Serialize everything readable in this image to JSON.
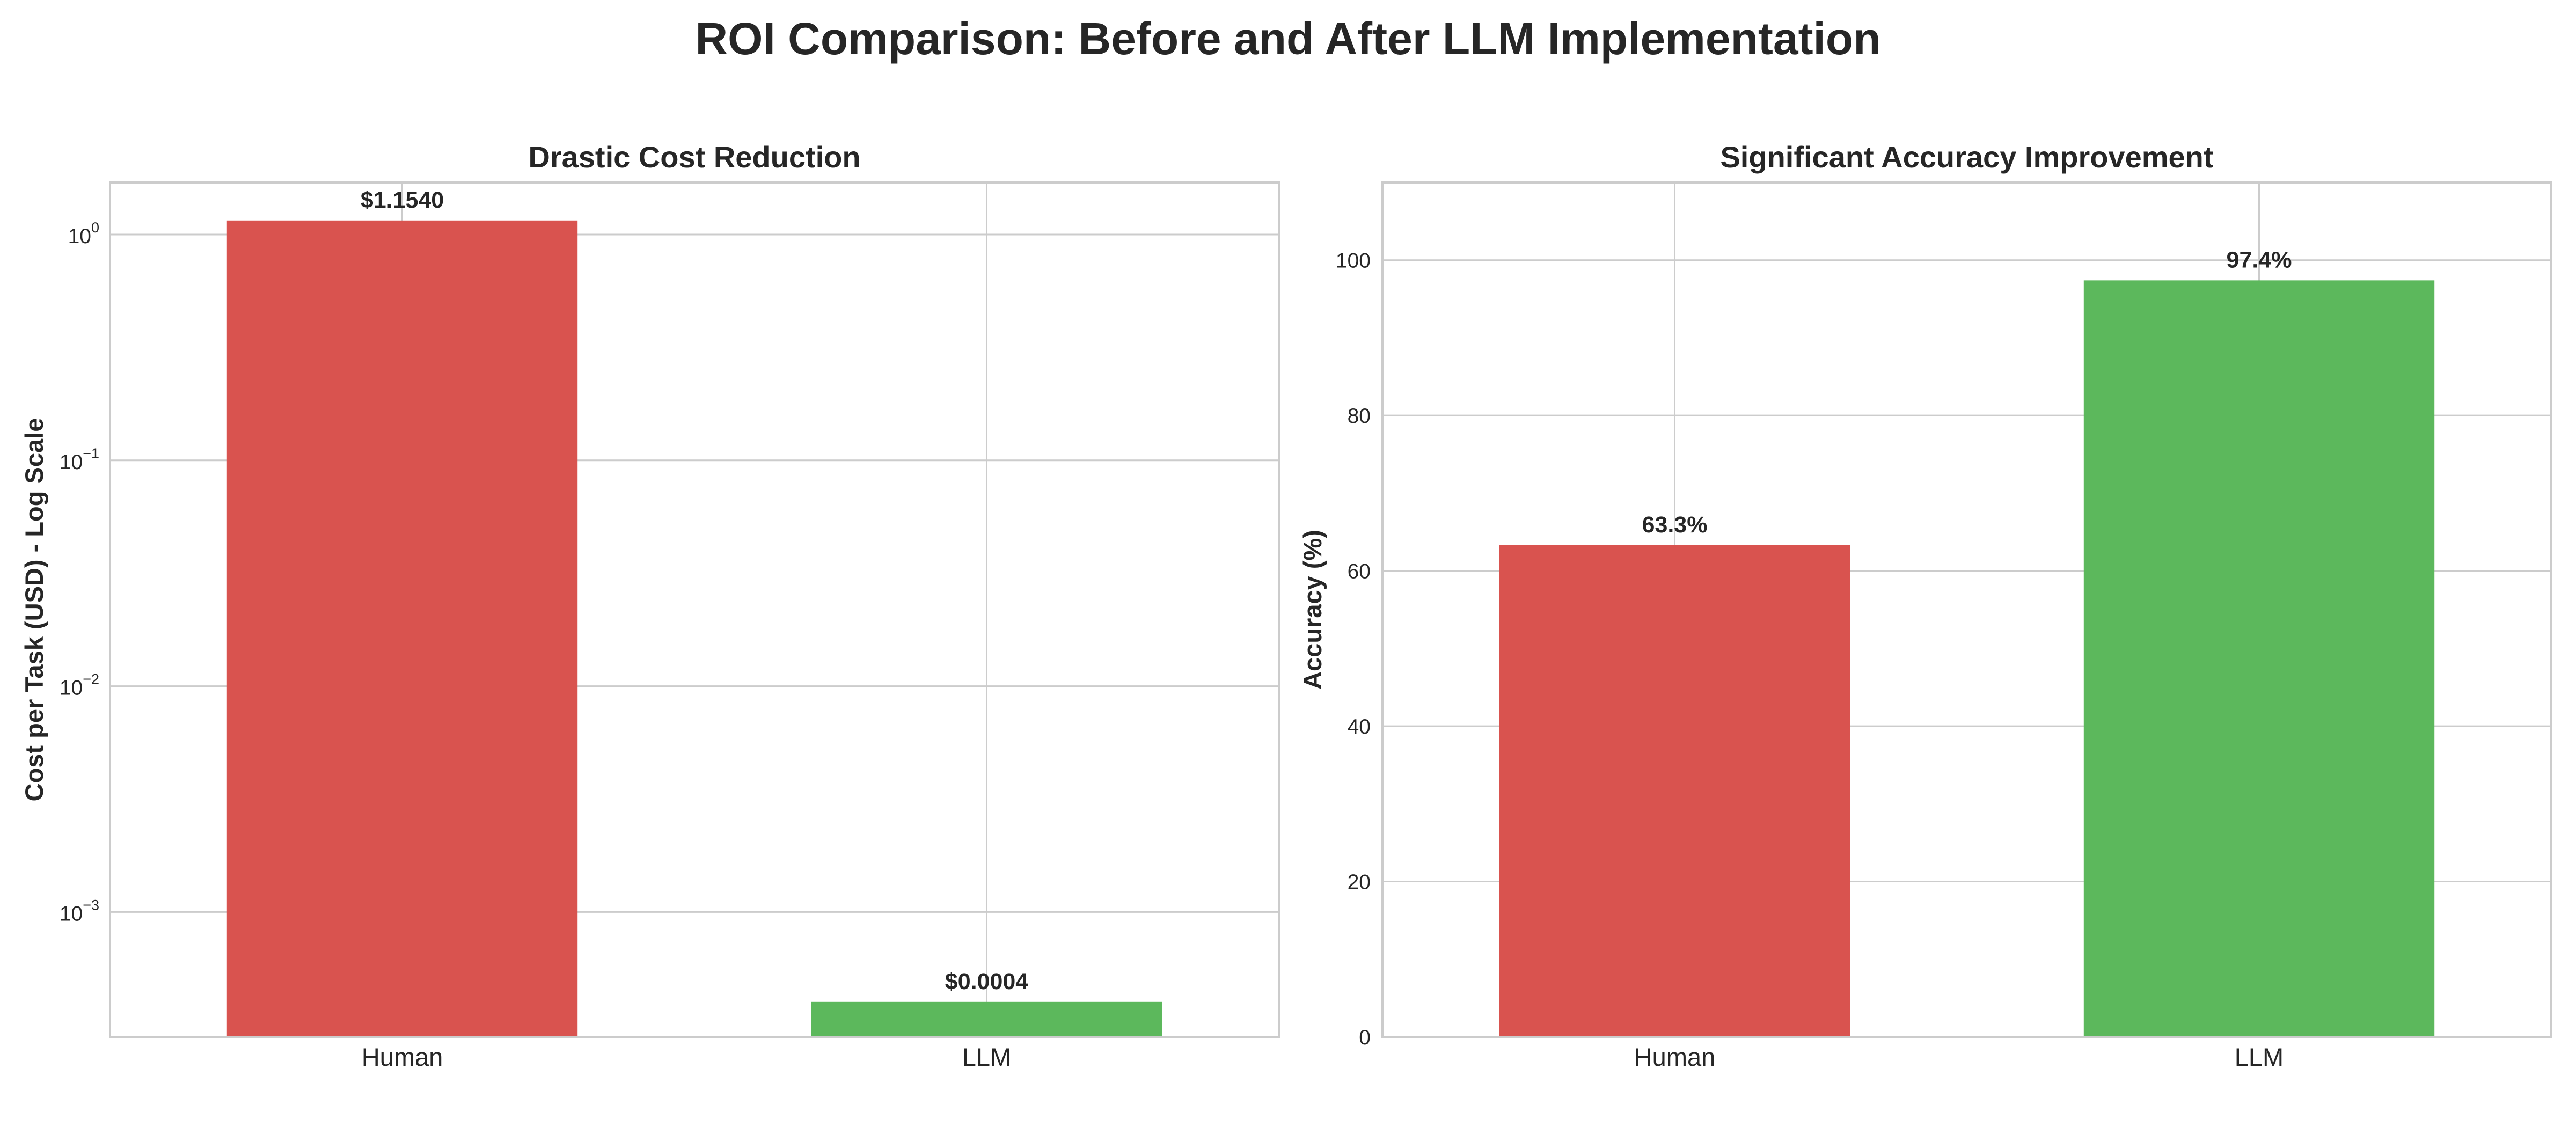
{
  "figure_title": "ROI Comparison: Before and After LLM Implementation",
  "chart_data": [
    {
      "type": "bar",
      "title": "Drastic Cost Reduction",
      "xlabel": "",
      "ylabel": "Cost per Task (USD) - Log Scale",
      "scale": "log",
      "ylim": [
        0.00028,
        1.7
      ],
      "yticks": [
        0.001,
        0.01,
        0.1,
        1
      ],
      "ytick_labels": [
        {
          "base": "10",
          "exp": "−3"
        },
        {
          "base": "10",
          "exp": "−2"
        },
        {
          "base": "10",
          "exp": "−1"
        },
        {
          "base": "10",
          "exp": "0"
        }
      ],
      "categories": [
        "Human",
        "LLM"
      ],
      "values": [
        1.154,
        0.0004
      ],
      "data_labels": [
        "$1.1540",
        "$0.0004"
      ],
      "colors": [
        "#d9534f",
        "#5cb85c"
      ],
      "grid": true
    },
    {
      "type": "bar",
      "title": "Significant Accuracy Improvement",
      "xlabel": "",
      "ylabel": "Accuracy (%)",
      "scale": "linear",
      "ylim": [
        0,
        110
      ],
      "yticks": [
        0,
        20,
        40,
        60,
        80,
        100
      ],
      "ytick_labels": [
        "0",
        "20",
        "40",
        "60",
        "80",
        "100"
      ],
      "categories": [
        "Human",
        "LLM"
      ],
      "values": [
        63.3,
        97.4
      ],
      "data_labels": [
        "63.3%",
        "97.4%"
      ],
      "colors": [
        "#d9534f",
        "#5cb85c"
      ],
      "grid": true
    }
  ]
}
